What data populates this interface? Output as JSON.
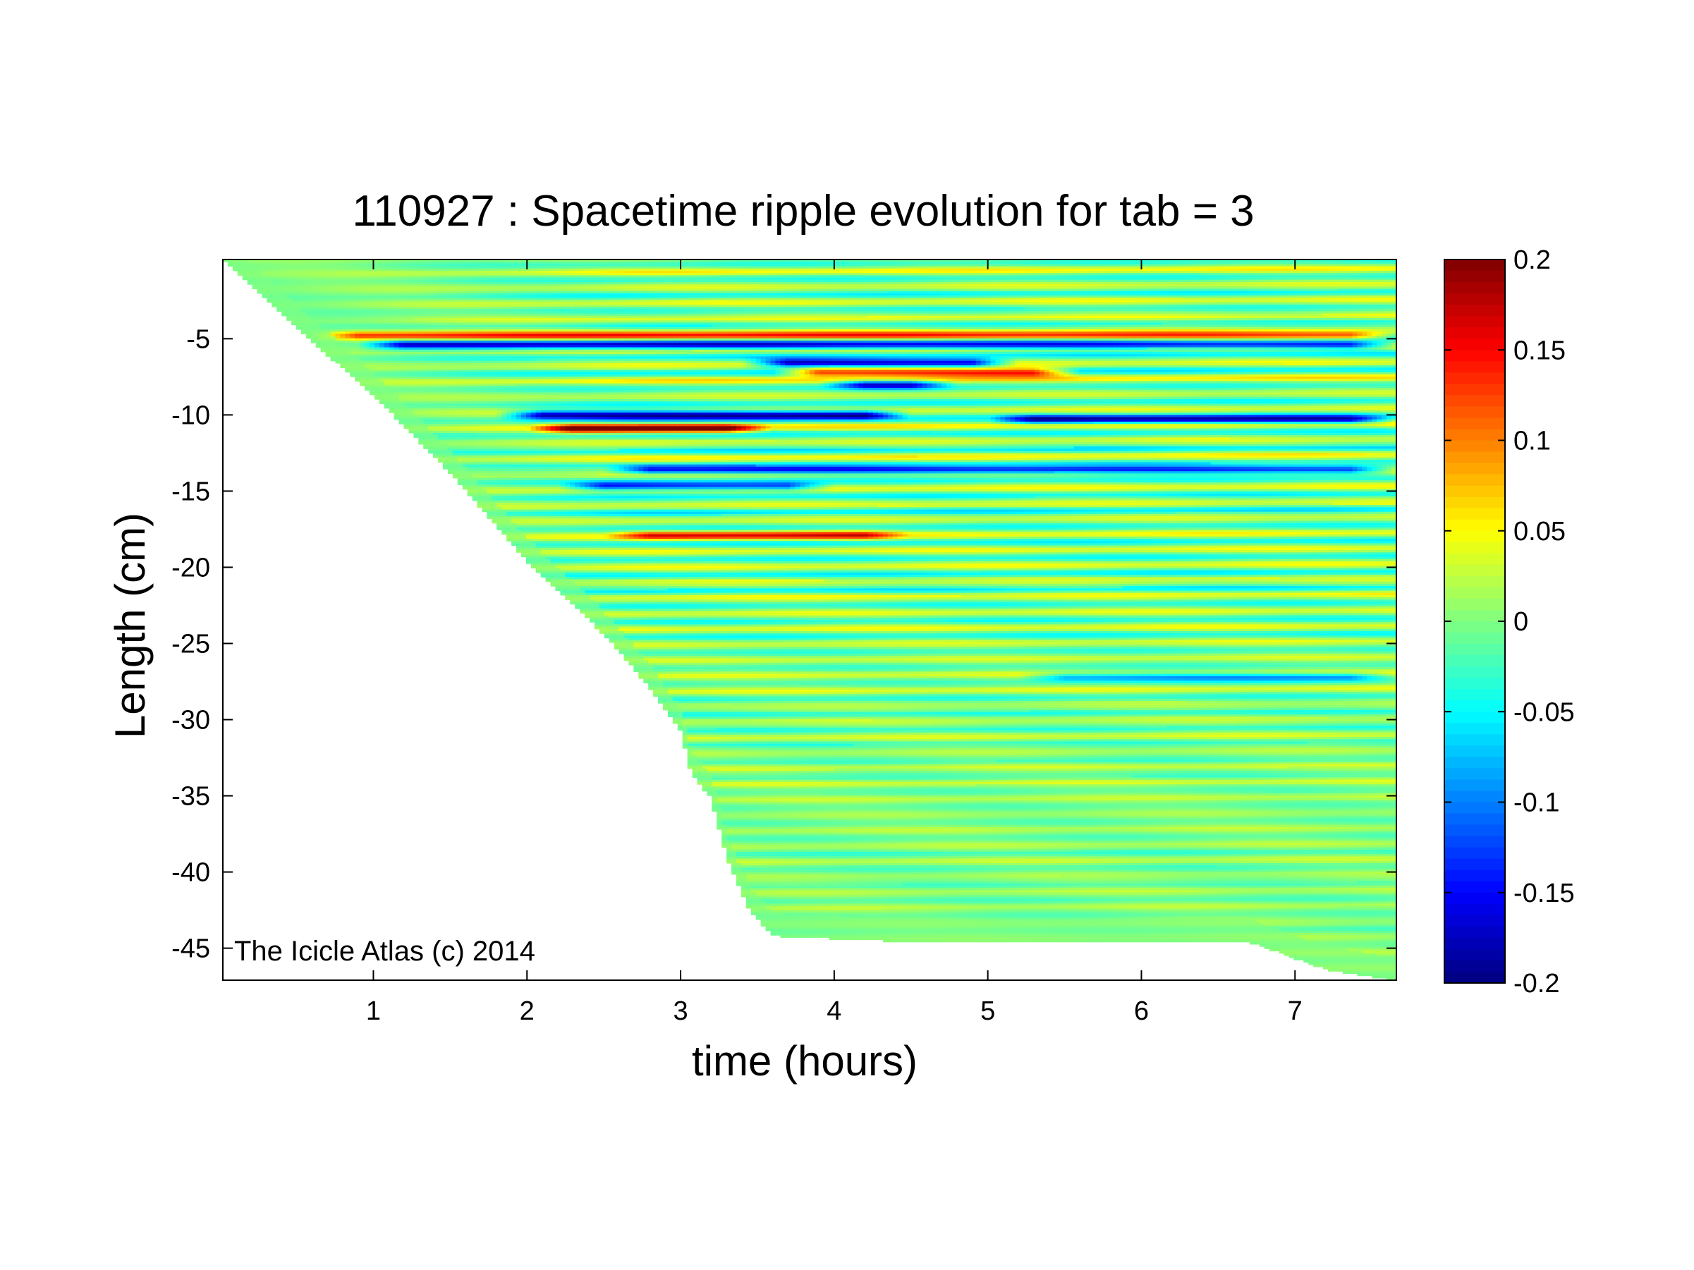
{
  "chart_data": {
    "type": "heatmap",
    "title": "110927 : Spacetime ripple evolution for tab = 3",
    "xlabel": "time (hours)",
    "ylabel": "Length (cm)",
    "xlim": [
      0.02,
      7.66
    ],
    "ylim": [
      -47.1,
      0.2
    ],
    "x_ticks": [
      1,
      2,
      3,
      4,
      5,
      6,
      7
    ],
    "y_ticks": [
      -45,
      -40,
      -35,
      -30,
      -25,
      -20,
      -15,
      -10,
      -5
    ],
    "colorbar": {
      "colormap": "jet",
      "range": [
        -0.2,
        0.2
      ],
      "ticks": [
        0.2,
        0.15,
        0.1,
        0.05,
        0,
        -0.05,
        -0.1,
        -0.15,
        -0.2
      ],
      "colors": [
        "#00008f",
        "#0000ff",
        "#00ffff",
        "#ffff00",
        "#ff0000",
        "#800000"
      ]
    },
    "boundary": {
      "description_units": "icicle tip position (cm) vs time (hours)",
      "points": [
        [
          0.02,
          0.2
        ],
        [
          0.5,
          -4.3
        ],
        [
          1.0,
          -8.7
        ],
        [
          1.5,
          -13.8
        ],
        [
          2.0,
          -19.6
        ],
        [
          2.5,
          -24.4
        ],
        [
          2.8,
          -27.9
        ],
        [
          3.0,
          -30.7
        ],
        [
          3.07,
          -33.6
        ],
        [
          3.2,
          -35.2
        ],
        [
          3.3,
          -39.1
        ],
        [
          3.45,
          -42.5
        ],
        [
          3.6,
          -44.2
        ],
        [
          4.5,
          -44.6
        ],
        [
          6.7,
          -44.6
        ],
        [
          7.2,
          -46.4
        ],
        [
          7.66,
          -47.1
        ]
      ]
    },
    "strong_bands": [
      {
        "y": -4.8,
        "t0": 0.6,
        "t1": 7.66,
        "sign": 1,
        "amp": 0.13
      },
      {
        "y": -5.4,
        "t0": 0.9,
        "t1": 7.66,
        "sign": -1,
        "amp": 0.16
      },
      {
        "y": -6.6,
        "t0": 3.4,
        "t1": 5.2,
        "sign": -1,
        "amp": 0.2
      },
      {
        "y": -7.2,
        "t0": 3.6,
        "t1": 5.6,
        "sign": 1,
        "amp": 0.19
      },
      {
        "y": -8.0,
        "t0": 3.9,
        "t1": 4.8,
        "sign": -1,
        "amp": 0.15
      },
      {
        "y": -10.0,
        "t0": 1.8,
        "t1": 4.5,
        "sign": -1,
        "amp": 0.2
      },
      {
        "y": -10.9,
        "t0": 2.0,
        "t1": 3.6,
        "sign": 1,
        "amp": 0.19
      },
      {
        "y": -10.3,
        "t0": 5.0,
        "t1": 7.66,
        "sign": -1,
        "amp": 0.16
      },
      {
        "y": -13.6,
        "t0": 2.5,
        "t1": 7.66,
        "sign": -1,
        "amp": 0.15
      },
      {
        "y": -14.7,
        "t0": 2.2,
        "t1": 4.0,
        "sign": -1,
        "amp": 0.14
      },
      {
        "y": -17.9,
        "t0": 2.5,
        "t1": 4.5,
        "sign": 1,
        "amp": 0.12
      },
      {
        "y": -27.2,
        "t0": 5.2,
        "t1": 7.66,
        "sign": -1,
        "amp": 0.09
      }
    ]
  },
  "annotation": {
    "copyright": "The Icicle Atlas (c) 2014"
  }
}
